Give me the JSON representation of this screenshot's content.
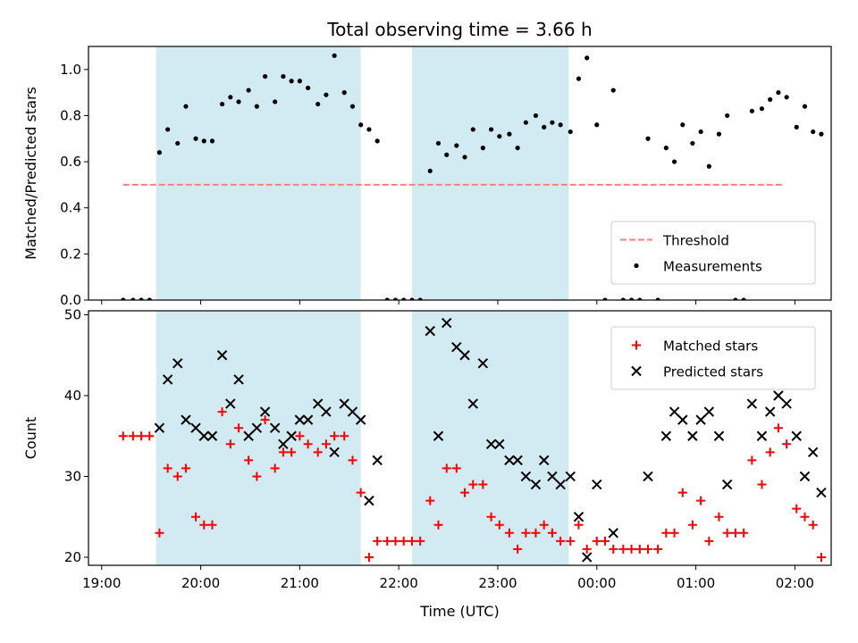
{
  "chart_data": {
    "type": "scatter",
    "title": "Total observing time = 3.66 h",
    "xlabel": "Time (UTC)",
    "x_ticks": [
      "19:00",
      "20:00",
      "21:00",
      "22:00",
      "23:00",
      "00:00",
      "01:00",
      "02:00"
    ],
    "shaded_intervals": [
      [
        "19:33",
        "21:37"
      ],
      [
        "22:08",
        "23:43"
      ]
    ],
    "shade_color": "#add8e6",
    "panels": [
      {
        "ylabel": "Matched/Predicted stars",
        "ylim": [
          0,
          1.1
        ],
        "y_ticks": [
          "0.0",
          "0.2",
          "0.4",
          "0.6",
          "0.8",
          "1.0"
        ],
        "legend_position": "lower-right",
        "series": [
          {
            "name": "Threshold",
            "kind": "dashed-line",
            "color": "#ff7f7f",
            "points": [
              [
                "19:13",
                0.5
              ],
              [
                "23:59",
                0.5
              ],
              [
                "01:53",
                0.5
              ]
            ]
          },
          {
            "name": "Measurements",
            "kind": "dot",
            "color": "#000000",
            "points": [
              [
                "19:13",
                0.0
              ],
              [
                "19:19",
                0.0
              ],
              [
                "19:24",
                0.0
              ],
              [
                "19:29",
                0.0
              ],
              [
                "19:35",
                0.64
              ],
              [
                "19:40",
                0.74
              ],
              [
                "19:46",
                0.68
              ],
              [
                "19:51",
                0.84
              ],
              [
                "19:57",
                0.7
              ],
              [
                "20:02",
                0.69
              ],
              [
                "20:07",
                0.69
              ],
              [
                "20:13",
                0.85
              ],
              [
                "20:18",
                0.88
              ],
              [
                "20:23",
                0.86
              ],
              [
                "20:29",
                0.91
              ],
              [
                "20:34",
                0.84
              ],
              [
                "20:39",
                0.97
              ],
              [
                "20:45",
                0.86
              ],
              [
                "20:50",
                0.97
              ],
              [
                "20:55",
                0.95
              ],
              [
                "21:00",
                0.95
              ],
              [
                "21:05",
                0.92
              ],
              [
                "21:11",
                0.85
              ],
              [
                "21:16",
                0.89
              ],
              [
                "21:21",
                1.06
              ],
              [
                "21:27",
                0.9
              ],
              [
                "21:32",
                0.84
              ],
              [
                "21:37",
                0.76
              ],
              [
                "21:42",
                0.74
              ],
              [
                "21:47",
                0.69
              ],
              [
                "21:53",
                0.0
              ],
              [
                "21:58",
                0.0
              ],
              [
                "22:03",
                0.0
              ],
              [
                "22:08",
                0.0
              ],
              [
                "22:13",
                0.0
              ],
              [
                "22:19",
                0.56
              ],
              [
                "22:24",
                0.68
              ],
              [
                "22:29",
                0.63
              ],
              [
                "22:35",
                0.67
              ],
              [
                "22:40",
                0.62
              ],
              [
                "22:45",
                0.74
              ],
              [
                "22:51",
                0.66
              ],
              [
                "22:56",
                0.74
              ],
              [
                "23:01",
                0.71
              ],
              [
                "23:07",
                0.72
              ],
              [
                "23:12",
                0.66
              ],
              [
                "23:17",
                0.77
              ],
              [
                "23:23",
                0.8
              ],
              [
                "23:28",
                0.75
              ],
              [
                "23:33",
                0.77
              ],
              [
                "23:38",
                0.76
              ],
              [
                "23:44",
                0.73
              ],
              [
                "23:49",
                0.96
              ],
              [
                "23:54",
                1.05
              ],
              [
                "00:00",
                0.76
              ],
              [
                "00:05",
                0.0
              ],
              [
                "00:10",
                0.91
              ],
              [
                "00:16",
                0.0
              ],
              [
                "00:21",
                0.0
              ],
              [
                "00:26",
                0.0
              ],
              [
                "00:31",
                0.7
              ],
              [
                "00:37",
                0.0
              ],
              [
                "00:42",
                0.66
              ],
              [
                "00:47",
                0.6
              ],
              [
                "00:52",
                0.76
              ],
              [
                "00:58",
                0.68
              ],
              [
                "01:03",
                0.73
              ],
              [
                "01:08",
                0.58
              ],
              [
                "01:14",
                0.72
              ],
              [
                "01:19",
                0.8
              ],
              [
                "01:24",
                0.0
              ],
              [
                "01:29",
                0.0
              ],
              [
                "01:34",
                0.82
              ],
              [
                "01:40",
                0.83
              ],
              [
                "01:45",
                0.87
              ],
              [
                "01:50",
                0.9
              ],
              [
                "01:55",
                0.88
              ],
              [
                "02:01",
                0.75
              ],
              [
                "02:06",
                0.84
              ],
              [
                "02:11",
                0.73
              ],
              [
                "02:16",
                0.72
              ]
            ]
          }
        ]
      },
      {
        "ylabel": "Count",
        "ylim": [
          19,
          50.5
        ],
        "y_ticks": [
          "20",
          "30",
          "40",
          "50"
        ],
        "legend_position": "upper-right",
        "series": [
          {
            "name": "Matched stars",
            "kind": "plus",
            "color": "#ff0000",
            "points": [
              [
                "19:13",
                35
              ],
              [
                "19:19",
                35
              ],
              [
                "19:24",
                35
              ],
              [
                "19:29",
                35
              ],
              [
                "19:35",
                23
              ],
              [
                "19:40",
                31
              ],
              [
                "19:46",
                30
              ],
              [
                "19:51",
                31
              ],
              [
                "19:57",
                25
              ],
              [
                "20:02",
                24
              ],
              [
                "20:07",
                24
              ],
              [
                "20:13",
                38
              ],
              [
                "20:18",
                34
              ],
              [
                "20:23",
                36
              ],
              [
                "20:29",
                32
              ],
              [
                "20:34",
                30
              ],
              [
                "20:39",
                37
              ],
              [
                "20:45",
                31
              ],
              [
                "20:50",
                33
              ],
              [
                "20:55",
                33
              ],
              [
                "21:00",
                35
              ],
              [
                "21:05",
                34
              ],
              [
                "21:11",
                33
              ],
              [
                "21:16",
                34
              ],
              [
                "21:21",
                35
              ],
              [
                "21:27",
                35
              ],
              [
                "21:32",
                32
              ],
              [
                "21:37",
                28
              ],
              [
                "21:42",
                20
              ],
              [
                "21:47",
                22
              ],
              [
                "21:53",
                22
              ],
              [
                "21:58",
                22
              ],
              [
                "22:03",
                22
              ],
              [
                "22:08",
                22
              ],
              [
                "22:13",
                22
              ],
              [
                "22:19",
                27
              ],
              [
                "22:24",
                24
              ],
              [
                "22:29",
                31
              ],
              [
                "22:35",
                31
              ],
              [
                "22:40",
                28
              ],
              [
                "22:45",
                29
              ],
              [
                "22:51",
                29
              ],
              [
                "22:56",
                25
              ],
              [
                "23:01",
                24
              ],
              [
                "23:07",
                23
              ],
              [
                "23:12",
                21
              ],
              [
                "23:17",
                23
              ],
              [
                "23:23",
                23
              ],
              [
                "23:28",
                24
              ],
              [
                "23:33",
                23
              ],
              [
                "23:38",
                22
              ],
              [
                "23:44",
                22
              ],
              [
                "23:49",
                24
              ],
              [
                "23:54",
                21
              ],
              [
                "00:00",
                22
              ],
              [
                "00:05",
                22
              ],
              [
                "00:10",
                21
              ],
              [
                "00:16",
                21
              ],
              [
                "00:21",
                21
              ],
              [
                "00:26",
                21
              ],
              [
                "00:31",
                21
              ],
              [
                "00:37",
                21
              ],
              [
                "00:42",
                23
              ],
              [
                "00:47",
                23
              ],
              [
                "00:52",
                28
              ],
              [
                "00:58",
                24
              ],
              [
                "01:03",
                27
              ],
              [
                "01:08",
                22
              ],
              [
                "01:14",
                25
              ],
              [
                "01:19",
                23
              ],
              [
                "01:24",
                23
              ],
              [
                "01:29",
                23
              ],
              [
                "01:34",
                32
              ],
              [
                "01:40",
                29
              ],
              [
                "01:45",
                33
              ],
              [
                "01:50",
                36
              ],
              [
                "01:55",
                34
              ],
              [
                "02:01",
                26
              ],
              [
                "02:06",
                25
              ],
              [
                "02:11",
                24
              ],
              [
                "02:16",
                20
              ]
            ]
          },
          {
            "name": "Predicted stars",
            "kind": "cross",
            "color": "#000000",
            "points": [
              [
                "19:35",
                36
              ],
              [
                "19:40",
                42
              ],
              [
                "19:46",
                44
              ],
              [
                "19:51",
                37
              ],
              [
                "19:57",
                36
              ],
              [
                "20:02",
                35
              ],
              [
                "20:07",
                35
              ],
              [
                "20:13",
                45
              ],
              [
                "20:18",
                39
              ],
              [
                "20:23",
                42
              ],
              [
                "20:29",
                35
              ],
              [
                "20:34",
                36
              ],
              [
                "20:39",
                38
              ],
              [
                "20:45",
                36
              ],
              [
                "20:50",
                34
              ],
              [
                "20:55",
                35
              ],
              [
                "21:00",
                37
              ],
              [
                "21:05",
                37
              ],
              [
                "21:11",
                39
              ],
              [
                "21:16",
                38
              ],
              [
                "21:21",
                33
              ],
              [
                "21:27",
                39
              ],
              [
                "21:32",
                38
              ],
              [
                "21:37",
                37
              ],
              [
                "21:42",
                27
              ],
              [
                "21:47",
                32
              ],
              [
                "22:19",
                48
              ],
              [
                "22:24",
                35
              ],
              [
                "22:29",
                49
              ],
              [
                "22:35",
                46
              ],
              [
                "22:40",
                45
              ],
              [
                "22:45",
                39
              ],
              [
                "22:51",
                44
              ],
              [
                "22:56",
                34
              ],
              [
                "23:01",
                34
              ],
              [
                "23:07",
                32
              ],
              [
                "23:12",
                32
              ],
              [
                "23:17",
                30
              ],
              [
                "23:23",
                29
              ],
              [
                "23:28",
                32
              ],
              [
                "23:33",
                30
              ],
              [
                "23:38",
                29
              ],
              [
                "23:44",
                30
              ],
              [
                "23:49",
                25
              ],
              [
                "23:54",
                20
              ],
              [
                "00:00",
                29
              ],
              [
                "00:10",
                23
              ],
              [
                "00:31",
                30
              ],
              [
                "00:42",
                35
              ],
              [
                "00:47",
                38
              ],
              [
                "00:52",
                37
              ],
              [
                "00:58",
                35
              ],
              [
                "01:03",
                37
              ],
              [
                "01:08",
                38
              ],
              [
                "01:14",
                35
              ],
              [
                "01:19",
                29
              ],
              [
                "01:34",
                39
              ],
              [
                "01:40",
                35
              ],
              [
                "01:45",
                38
              ],
              [
                "01:50",
                40
              ],
              [
                "01:55",
                39
              ],
              [
                "02:01",
                35
              ],
              [
                "02:06",
                30
              ],
              [
                "02:11",
                33
              ],
              [
                "02:16",
                28
              ]
            ]
          }
        ]
      }
    ]
  }
}
